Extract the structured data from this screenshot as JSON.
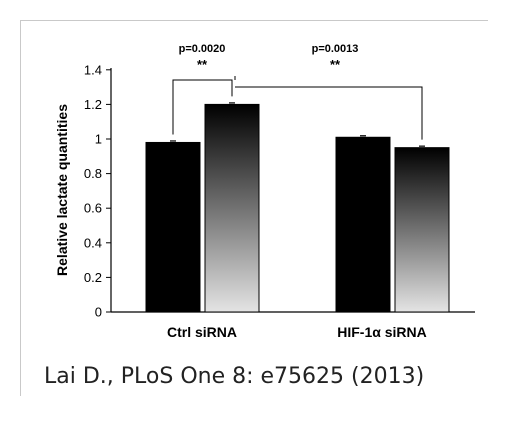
{
  "chart_data": {
    "type": "bar",
    "ylabel": "Relative lactate quantities",
    "ylim": [
      0,
      1.4
    ],
    "yticks": [
      "0",
      "0.2",
      "0.4",
      "0.6",
      "0.8",
      "1",
      "1.2",
      "1.4"
    ],
    "categories": [
      "Ctrl siRNA",
      "HIF-1α siRNA"
    ],
    "series": [
      {
        "fill": "#000000",
        "values": [
          0.98,
          1.01
        ]
      },
      {
        "fill": "gradient",
        "values": [
          1.2,
          0.95
        ]
      }
    ],
    "annotations": [
      {
        "pvalue": "p=0.0020",
        "stars": "**"
      },
      {
        "pvalue": "p=0.0013",
        "stars": "**"
      }
    ],
    "grid": false
  },
  "citation": "Lai D., PLoS One 8: e75625 (2013)",
  "colors": {
    "bar_dark": "#000000",
    "gradient_top": "#000000",
    "gradient_bottom": "#e4e4e4",
    "frame": "#c9c9c9"
  }
}
